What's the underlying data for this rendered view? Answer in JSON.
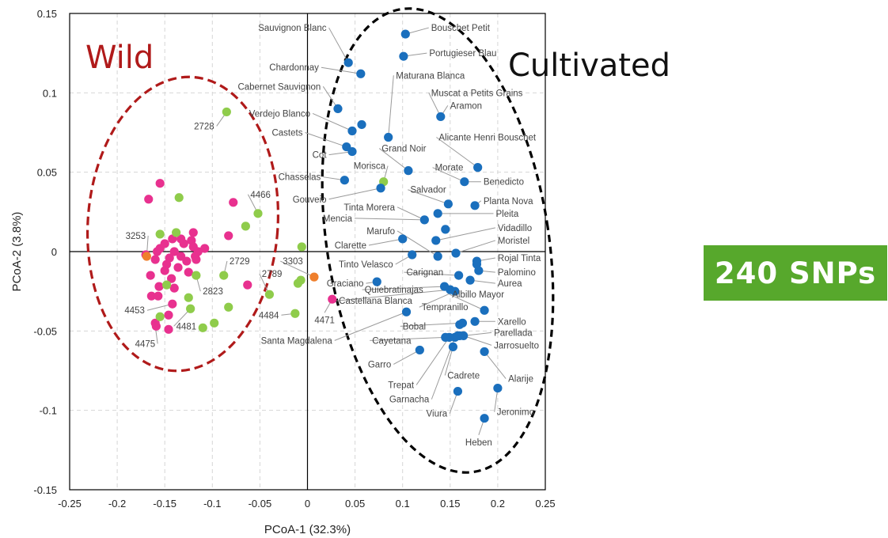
{
  "colors": {
    "wild": "#e8318f",
    "cultivated": "#1a6fbd",
    "intermediate": "#8fcc4b",
    "hybrid": "#ef7f2c",
    "wild_text": "#b01a1a",
    "badge": "#57a82c"
  },
  "annotations": {
    "wild": "Wild",
    "cultivated": "Cultivated",
    "badge": "240 SNPs"
  },
  "chart_data": {
    "type": "scatter",
    "title": "",
    "xlabel": "PCoA-1 (32.3%)",
    "ylabel": "PCoA-2 (3.8%)",
    "xlim": [
      -0.25,
      0.25
    ],
    "ylim": [
      -0.15,
      0.15
    ],
    "xticks": [
      "-0.25",
      "-0.2",
      "-0.15",
      "-0.1",
      "-0.05",
      "0",
      "0.05",
      "0.1",
      "0.15",
      "0.2",
      "0.25"
    ],
    "yticks": [
      "0.15",
      "0.1",
      "0.05",
      "0",
      "-0.05",
      "-0.1",
      "-0.15"
    ],
    "grid": true,
    "groups": {
      "wild": [
        [
          -0.167,
          0.033
        ],
        [
          -0.155,
          0.043
        ],
        [
          -0.17,
          -0.002
        ],
        [
          -0.165,
          -0.015
        ],
        [
          -0.16,
          -0.005
        ],
        [
          -0.158,
          0.0
        ],
        [
          -0.155,
          0.002
        ],
        [
          -0.15,
          0.005
        ],
        [
          -0.148,
          -0.008
        ],
        [
          -0.145,
          -0.004
        ],
        [
          -0.142,
          0.008
        ],
        [
          -0.14,
          0.0
        ],
        [
          -0.136,
          -0.01
        ],
        [
          -0.133,
          -0.003
        ],
        [
          -0.13,
          0.005
        ],
        [
          -0.127,
          -0.006
        ],
        [
          -0.122,
          0.007
        ],
        [
          -0.12,
          0.003
        ],
        [
          -0.118,
          -0.003
        ],
        [
          -0.12,
          0.012
        ],
        [
          -0.115,
          0.0
        ],
        [
          -0.108,
          0.002
        ],
        [
          -0.125,
          -0.013
        ],
        [
          -0.143,
          -0.017
        ],
        [
          -0.156,
          -0.022
        ],
        [
          -0.164,
          -0.028
        ],
        [
          -0.157,
          -0.028
        ],
        [
          -0.14,
          -0.023
        ],
        [
          -0.142,
          -0.033
        ],
        [
          -0.146,
          -0.04
        ],
        [
          -0.16,
          -0.045
        ],
        [
          -0.159,
          -0.047
        ],
        [
          -0.146,
          -0.049
        ],
        [
          -0.078,
          0.031
        ],
        [
          -0.083,
          0.01
        ],
        [
          -0.063,
          -0.021
        ],
        [
          0.026,
          -0.03
        ],
        [
          -0.117,
          -0.005
        ],
        [
          -0.133,
          0.008
        ],
        [
          -0.15,
          -0.012
        ]
      ],
      "cultivated": [
        [
          0.103,
          0.137
        ],
        [
          0.101,
          0.123
        ],
        [
          0.043,
          0.119
        ],
        [
          0.056,
          0.112
        ],
        [
          0.032,
          0.09
        ],
        [
          0.057,
          0.08
        ],
        [
          0.047,
          0.076
        ],
        [
          0.041,
          0.066
        ],
        [
          0.047,
          0.063
        ],
        [
          0.085,
          0.072
        ],
        [
          0.14,
          0.085
        ],
        [
          0.106,
          0.051
        ],
        [
          0.039,
          0.045
        ],
        [
          0.077,
          0.04
        ],
        [
          0.179,
          0.053
        ],
        [
          0.165,
          0.044
        ],
        [
          0.148,
          0.03
        ],
        [
          0.176,
          0.029
        ],
        [
          0.137,
          0.024
        ],
        [
          0.123,
          0.02
        ],
        [
          0.145,
          0.014
        ],
        [
          0.135,
          0.007
        ],
        [
          0.1,
          0.008
        ],
        [
          0.11,
          -0.002
        ],
        [
          0.137,
          -0.003
        ],
        [
          0.156,
          -0.001
        ],
        [
          0.178,
          -0.006
        ],
        [
          0.178,
          -0.008
        ],
        [
          0.18,
          -0.012
        ],
        [
          0.159,
          -0.015
        ],
        [
          0.171,
          -0.018
        ],
        [
          0.073,
          -0.019
        ],
        [
          0.144,
          -0.022
        ],
        [
          0.15,
          -0.024
        ],
        [
          0.155,
          -0.025
        ],
        [
          0.186,
          -0.037
        ],
        [
          0.104,
          -0.038
        ],
        [
          0.176,
          -0.044
        ],
        [
          0.163,
          -0.045
        ],
        [
          0.16,
          -0.046
        ],
        [
          0.164,
          -0.053
        ],
        [
          0.16,
          -0.053
        ],
        [
          0.158,
          -0.053
        ],
        [
          0.155,
          -0.054
        ],
        [
          0.149,
          -0.054
        ],
        [
          0.145,
          -0.054
        ],
        [
          0.186,
          -0.063
        ],
        [
          0.118,
          -0.062
        ],
        [
          0.153,
          -0.06
        ],
        [
          0.2,
          -0.086
        ],
        [
          0.158,
          -0.088
        ],
        [
          0.186,
          -0.105
        ]
      ],
      "intermediate": [
        [
          -0.085,
          0.088
        ],
        [
          -0.135,
          0.034
        ],
        [
          -0.052,
          0.024
        ],
        [
          -0.065,
          0.016
        ],
        [
          -0.155,
          0.011
        ],
        [
          -0.138,
          0.012
        ],
        [
          -0.01,
          -0.02
        ],
        [
          -0.007,
          -0.018
        ],
        [
          -0.006,
          0.003
        ],
        [
          -0.088,
          -0.015
        ],
        [
          -0.117,
          -0.015
        ],
        [
          -0.125,
          -0.029
        ],
        [
          -0.148,
          -0.021
        ],
        [
          -0.083,
          -0.035
        ],
        [
          -0.04,
          -0.027
        ],
        [
          -0.013,
          -0.039
        ],
        [
          -0.123,
          -0.036
        ],
        [
          -0.155,
          -0.041
        ],
        [
          -0.098,
          -0.045
        ],
        [
          -0.11,
          -0.048
        ],
        [
          0.08,
          0.044
        ]
      ],
      "hybrid": [
        [
          -0.169,
          -0.003
        ],
        [
          0.007,
          -0.016
        ]
      ]
    },
    "labels": [
      {
        "text": "Sauvignon Blanc",
        "x": 0.043,
        "y": 0.119,
        "lx": 0.02,
        "ly": 0.141,
        "anchor": "end"
      },
      {
        "text": "Bouschet Petit",
        "x": 0.103,
        "y": 0.137,
        "lx": 0.13,
        "ly": 0.141,
        "anchor": "start"
      },
      {
        "text": "Portugieser Blau",
        "x": 0.101,
        "y": 0.123,
        "lx": 0.128,
        "ly": 0.125,
        "anchor": "start"
      },
      {
        "text": "Chardonnay",
        "x": 0.056,
        "y": 0.112,
        "lx": 0.012,
        "ly": 0.116,
        "anchor": "end"
      },
      {
        "text": "Maturana Blanca",
        "x": 0.085,
        "y": 0.072,
        "lx": 0.093,
        "ly": 0.111,
        "anchor": "start"
      },
      {
        "text": "Cabernet Sauvignon",
        "x": 0.032,
        "y": 0.09,
        "lx": 0.014,
        "ly": 0.104,
        "anchor": "end"
      },
      {
        "text": "Muscat a Petits Grains",
        "x": 0.14,
        "y": 0.085,
        "lx": 0.13,
        "ly": 0.1,
        "anchor": "start"
      },
      {
        "text": "Aramon",
        "x": 0.14,
        "y": 0.085,
        "lx": 0.15,
        "ly": 0.092,
        "anchor": "start"
      },
      {
        "text": "Verdejo Blanco",
        "x": 0.047,
        "y": 0.076,
        "lx": 0.003,
        "ly": 0.087,
        "anchor": "end"
      },
      {
        "text": "Castets",
        "x": 0.041,
        "y": 0.066,
        "lx": -0.005,
        "ly": 0.075,
        "anchor": "end"
      },
      {
        "text": "Cot",
        "x": 0.047,
        "y": 0.063,
        "lx": 0.02,
        "ly": 0.061,
        "anchor": "end"
      },
      {
        "text": "Alicante Henri Bouschet",
        "x": 0.179,
        "y": 0.053,
        "lx": 0.138,
        "ly": 0.072,
        "anchor": "start"
      },
      {
        "text": "Grand Noir",
        "x": 0.106,
        "y": 0.051,
        "lx": 0.078,
        "ly": 0.065,
        "anchor": "start"
      },
      {
        "text": "Morisca",
        "x": 0.08,
        "y": 0.044,
        "lx": 0.082,
        "ly": 0.054,
        "anchor": "end"
      },
      {
        "text": "Morate",
        "x": 0.165,
        "y": 0.044,
        "lx": 0.134,
        "ly": 0.053,
        "anchor": "start"
      },
      {
        "text": "Chasselas",
        "x": 0.039,
        "y": 0.045,
        "lx": 0.014,
        "ly": 0.047,
        "anchor": "end"
      },
      {
        "text": "Benedicto",
        "x": 0.165,
        "y": 0.044,
        "lx": 0.185,
        "ly": 0.044,
        "anchor": "start"
      },
      {
        "text": "Salvador",
        "x": 0.148,
        "y": 0.03,
        "lx": 0.108,
        "ly": 0.039,
        "anchor": "start"
      },
      {
        "text": "Gouveio",
        "x": 0.077,
        "y": 0.04,
        "lx": 0.02,
        "ly": 0.033,
        "anchor": "end"
      },
      {
        "text": "Planta Nova",
        "x": 0.176,
        "y": 0.029,
        "lx": 0.185,
        "ly": 0.032,
        "anchor": "start"
      },
      {
        "text": "Tinta Morera",
        "x": 0.123,
        "y": 0.02,
        "lx": 0.092,
        "ly": 0.028,
        "anchor": "end"
      },
      {
        "text": "Pleita",
        "x": 0.137,
        "y": 0.024,
        "lx": 0.198,
        "ly": 0.024,
        "anchor": "start"
      },
      {
        "text": "Mencia",
        "x": 0.123,
        "y": 0.02,
        "lx": 0.047,
        "ly": 0.021,
        "anchor": "end"
      },
      {
        "text": "Vidadillo",
        "x": 0.135,
        "y": 0.007,
        "lx": 0.2,
        "ly": 0.015,
        "anchor": "start"
      },
      {
        "text": "Marufo",
        "x": 0.137,
        "y": -0.003,
        "lx": 0.092,
        "ly": 0.013,
        "anchor": "end"
      },
      {
        "text": "Moristel",
        "x": 0.156,
        "y": -0.001,
        "lx": 0.2,
        "ly": 0.007,
        "anchor": "start"
      },
      {
        "text": "Clarette",
        "x": 0.1,
        "y": 0.008,
        "lx": 0.062,
        "ly": 0.004,
        "anchor": "end"
      },
      {
        "text": "Rojal Tinta",
        "x": 0.178,
        "y": -0.006,
        "lx": 0.2,
        "ly": -0.004,
        "anchor": "start"
      },
      {
        "text": "Tinto Velasco",
        "x": 0.11,
        "y": -0.002,
        "lx": 0.09,
        "ly": -0.008,
        "anchor": "end"
      },
      {
        "text": "Palomino",
        "x": 0.18,
        "y": -0.012,
        "lx": 0.2,
        "ly": -0.013,
        "anchor": "start"
      },
      {
        "text": "Carignan",
        "x": 0.159,
        "y": -0.015,
        "lx": 0.104,
        "ly": -0.013,
        "anchor": "start"
      },
      {
        "text": "Graciano",
        "x": 0.073,
        "y": -0.019,
        "lx": 0.059,
        "ly": -0.02,
        "anchor": "end"
      },
      {
        "text": "Aurea",
        "x": 0.171,
        "y": -0.018,
        "lx": 0.2,
        "ly": -0.02,
        "anchor": "start"
      },
      {
        "text": "Quiebratinajas",
        "x": 0.144,
        "y": -0.022,
        "lx": 0.06,
        "ly": -0.024,
        "anchor": "start"
      },
      {
        "text": "Castellana Blanca",
        "x": 0.15,
        "y": -0.024,
        "lx": 0.033,
        "ly": -0.031,
        "anchor": "start"
      },
      {
        "text": "Albillo Mayor",
        "x": 0.186,
        "y": -0.037,
        "lx": 0.152,
        "ly": -0.027,
        "anchor": "start"
      },
      {
        "text": "Tempranillo",
        "x": 0.155,
        "y": -0.025,
        "lx": 0.12,
        "ly": -0.035,
        "anchor": "start"
      },
      {
        "text": "Bobal",
        "x": 0.163,
        "y": -0.045,
        "lx": 0.1,
        "ly": -0.047,
        "anchor": "start"
      },
      {
        "text": "Xarello",
        "x": 0.176,
        "y": -0.044,
        "lx": 0.2,
        "ly": -0.044,
        "anchor": "start"
      },
      {
        "text": "Parellada",
        "x": 0.164,
        "y": -0.053,
        "lx": 0.196,
        "ly": -0.051,
        "anchor": "start"
      },
      {
        "text": "Santa Magdalena",
        "x": 0.104,
        "y": -0.038,
        "lx": 0.026,
        "ly": -0.056,
        "anchor": "end"
      },
      {
        "text": "Cayetana",
        "x": 0.145,
        "y": -0.054,
        "lx": 0.068,
        "ly": -0.056,
        "anchor": "start"
      },
      {
        "text": "Jarrosuelto",
        "x": 0.164,
        "y": -0.053,
        "lx": 0.196,
        "ly": -0.059,
        "anchor": "start"
      },
      {
        "text": "Garro",
        "x": 0.118,
        "y": -0.062,
        "lx": 0.088,
        "ly": -0.071,
        "anchor": "end"
      },
      {
        "text": "Alarije",
        "x": 0.186,
        "y": -0.063,
        "lx": 0.211,
        "ly": -0.08,
        "anchor": "start"
      },
      {
        "text": "Cadrete",
        "x": 0.153,
        "y": -0.06,
        "lx": 0.147,
        "ly": -0.078,
        "anchor": "start"
      },
      {
        "text": "Trepat",
        "x": 0.149,
        "y": -0.054,
        "lx": 0.112,
        "ly": -0.084,
        "anchor": "end"
      },
      {
        "text": "Garnacha",
        "x": 0.155,
        "y": -0.054,
        "lx": 0.128,
        "ly": -0.093,
        "anchor": "end"
      },
      {
        "text": "Viura",
        "x": 0.158,
        "y": -0.088,
        "lx": 0.147,
        "ly": -0.102,
        "anchor": "end"
      },
      {
        "text": "Jeronimo",
        "x": 0.2,
        "y": -0.086,
        "lx": 0.199,
        "ly": -0.101,
        "anchor": "start"
      },
      {
        "text": "Heben",
        "x": 0.186,
        "y": -0.105,
        "lx": 0.18,
        "ly": -0.12,
        "anchor": "middle"
      },
      {
        "text": "2728",
        "x": -0.085,
        "y": 0.088,
        "lx": -0.098,
        "ly": 0.079,
        "anchor": "end"
      },
      {
        "text": "4466",
        "x": -0.052,
        "y": 0.024,
        "lx": -0.06,
        "ly": 0.036,
        "anchor": "start"
      },
      {
        "text": "3253",
        "x": -0.169,
        "y": -0.003,
        "lx": -0.17,
        "ly": 0.01,
        "anchor": "end"
      },
      {
        "text": "3303",
        "x": 0.007,
        "y": -0.016,
        "lx": -0.026,
        "ly": -0.006,
        "anchor": "start"
      },
      {
        "text": "2729",
        "x": -0.088,
        "y": -0.015,
        "lx": -0.082,
        "ly": -0.006,
        "anchor": "start"
      },
      {
        "text": "2789",
        "x": -0.04,
        "y": -0.027,
        "lx": -0.048,
        "ly": -0.014,
        "anchor": "start"
      },
      {
        "text": "2823",
        "x": -0.117,
        "y": -0.015,
        "lx": -0.11,
        "ly": -0.025,
        "anchor": "start"
      },
      {
        "text": "4453",
        "x": -0.142,
        "y": -0.033,
        "lx": -0.171,
        "ly": -0.037,
        "anchor": "end"
      },
      {
        "text": "4481",
        "x": -0.123,
        "y": -0.036,
        "lx": -0.138,
        "ly": -0.047,
        "anchor": "start"
      },
      {
        "text": "4484",
        "x": -0.013,
        "y": -0.039,
        "lx": -0.03,
        "ly": -0.04,
        "anchor": "end"
      },
      {
        "text": "4471",
        "x": 0.026,
        "y": -0.03,
        "lx": 0.018,
        "ly": -0.043,
        "anchor": "middle"
      },
      {
        "text": "4475",
        "x": -0.16,
        "y": -0.047,
        "lx": -0.16,
        "ly": -0.058,
        "anchor": "end"
      }
    ]
  }
}
